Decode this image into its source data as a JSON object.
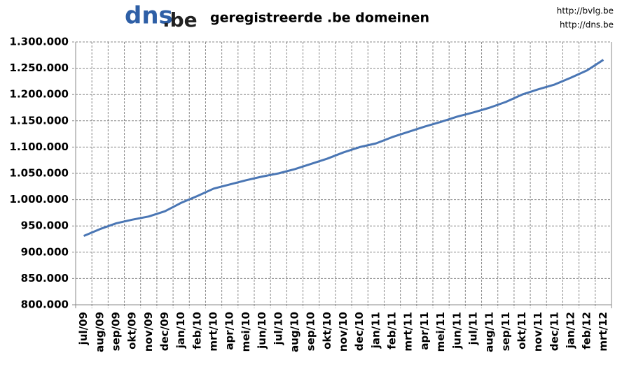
{
  "logo": {
    "main": "dns",
    "suffix": ".be"
  },
  "links": [
    "http://bvlg.be",
    "http://dns.be"
  ],
  "chart_data": {
    "type": "line",
    "title": "geregistreerde .be domeinen",
    "categories": [
      "jul/09",
      "aug/09",
      "sep/09",
      "okt/09",
      "nov/09",
      "dec/09",
      "jan/10",
      "feb/10",
      "mrt/10",
      "apr/10",
      "mei/10",
      "jun/10",
      "jul/10",
      "aug/10",
      "sep/10",
      "okt/10",
      "nov/10",
      "dec/10",
      "jan/11",
      "feb/11",
      "mrt/11",
      "apr/11",
      "mei/11",
      "jun/11",
      "jul/11",
      "aug/11",
      "sep/11",
      "okt/11",
      "nov/11",
      "dec/11",
      "jan/12",
      "feb/12",
      "mrt/12"
    ],
    "series": [
      {
        "name": "domeinen",
        "color": "#4a76b4",
        "values": [
          931000,
          944000,
          955000,
          962000,
          968000,
          978000,
          994000,
          1007000,
          1021000,
          1029000,
          1037000,
          1044000,
          1050000,
          1058000,
          1068000,
          1078000,
          1090000,
          1100000,
          1107000,
          1119000,
          1129000,
          1139000,
          1148000,
          1158000,
          1166000,
          1175000,
          1186000,
          1200000,
          1210000,
          1219000,
          1232000,
          1246000,
          1266000
        ]
      }
    ],
    "ylim": [
      800000,
      1300000
    ],
    "yticks": [
      {
        "value": 800000,
        "label": "800.000"
      },
      {
        "value": 850000,
        "label": "850.000"
      },
      {
        "value": 900000,
        "label": "900.000"
      },
      {
        "value": 950000,
        "label": "950.000"
      },
      {
        "value": 1000000,
        "label": "1.000.000"
      },
      {
        "value": 1050000,
        "label": "1.050.000"
      },
      {
        "value": 1100000,
        "label": "1.100.000"
      },
      {
        "value": 1150000,
        "label": "1.150.000"
      },
      {
        "value": 1200000,
        "label": "1.200.000"
      },
      {
        "value": 1250000,
        "label": "1.250.000"
      },
      {
        "value": 1300000,
        "label": "1.300.000"
      }
    ],
    "grid": true
  }
}
